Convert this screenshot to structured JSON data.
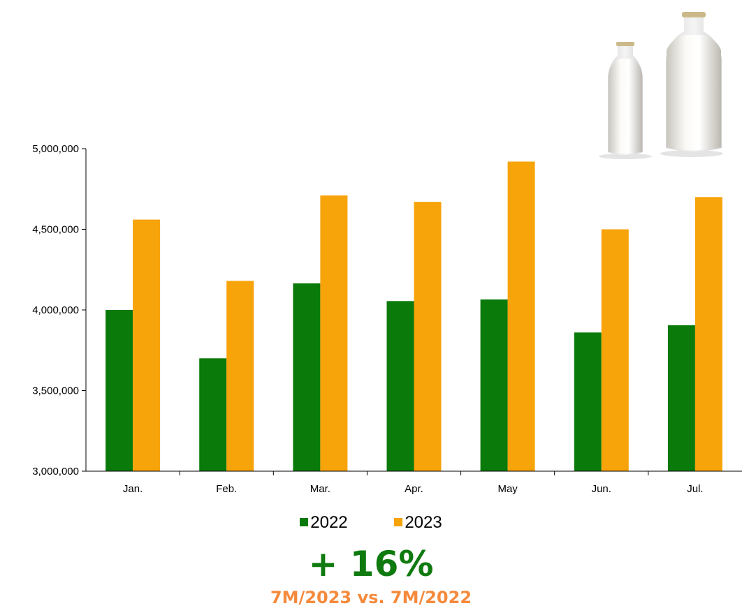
{
  "colors": {
    "series_2022": "#0a7a0a",
    "series_2023": "#f7a30a",
    "headline": "#0f7a0f",
    "subline": "#f58a3c"
  },
  "icons": {
    "decoration": "milk-bottles-icon"
  },
  "headline": {
    "text": "+ 16%"
  },
  "subline": {
    "text": "7M/2023 vs. 7M/2022"
  },
  "chart_data": {
    "type": "bar",
    "categories": [
      "Jan.",
      "Feb.",
      "Mar.",
      "Apr.",
      "May",
      "Jun.",
      "Jul."
    ],
    "series": [
      {
        "name": "2022",
        "values": [
          4000000,
          3700000,
          4165000,
          4055000,
          4065000,
          3860000,
          3905000
        ]
      },
      {
        "name": "2023",
        "values": [
          4560000,
          4180000,
          4710000,
          4670000,
          4920000,
          4500000,
          4700000
        ]
      }
    ],
    "ylim": [
      3000000,
      5000000
    ],
    "yticks": [
      3000000,
      3500000,
      4000000,
      4500000,
      5000000
    ],
    "ytick_labels": [
      "3,000,000",
      "3,500,000",
      "4,000,000",
      "4,500,000",
      "5,000,000"
    ],
    "grid": false,
    "legend_position": "bottom",
    "title": "",
    "xlabel": "",
    "ylabel": ""
  }
}
